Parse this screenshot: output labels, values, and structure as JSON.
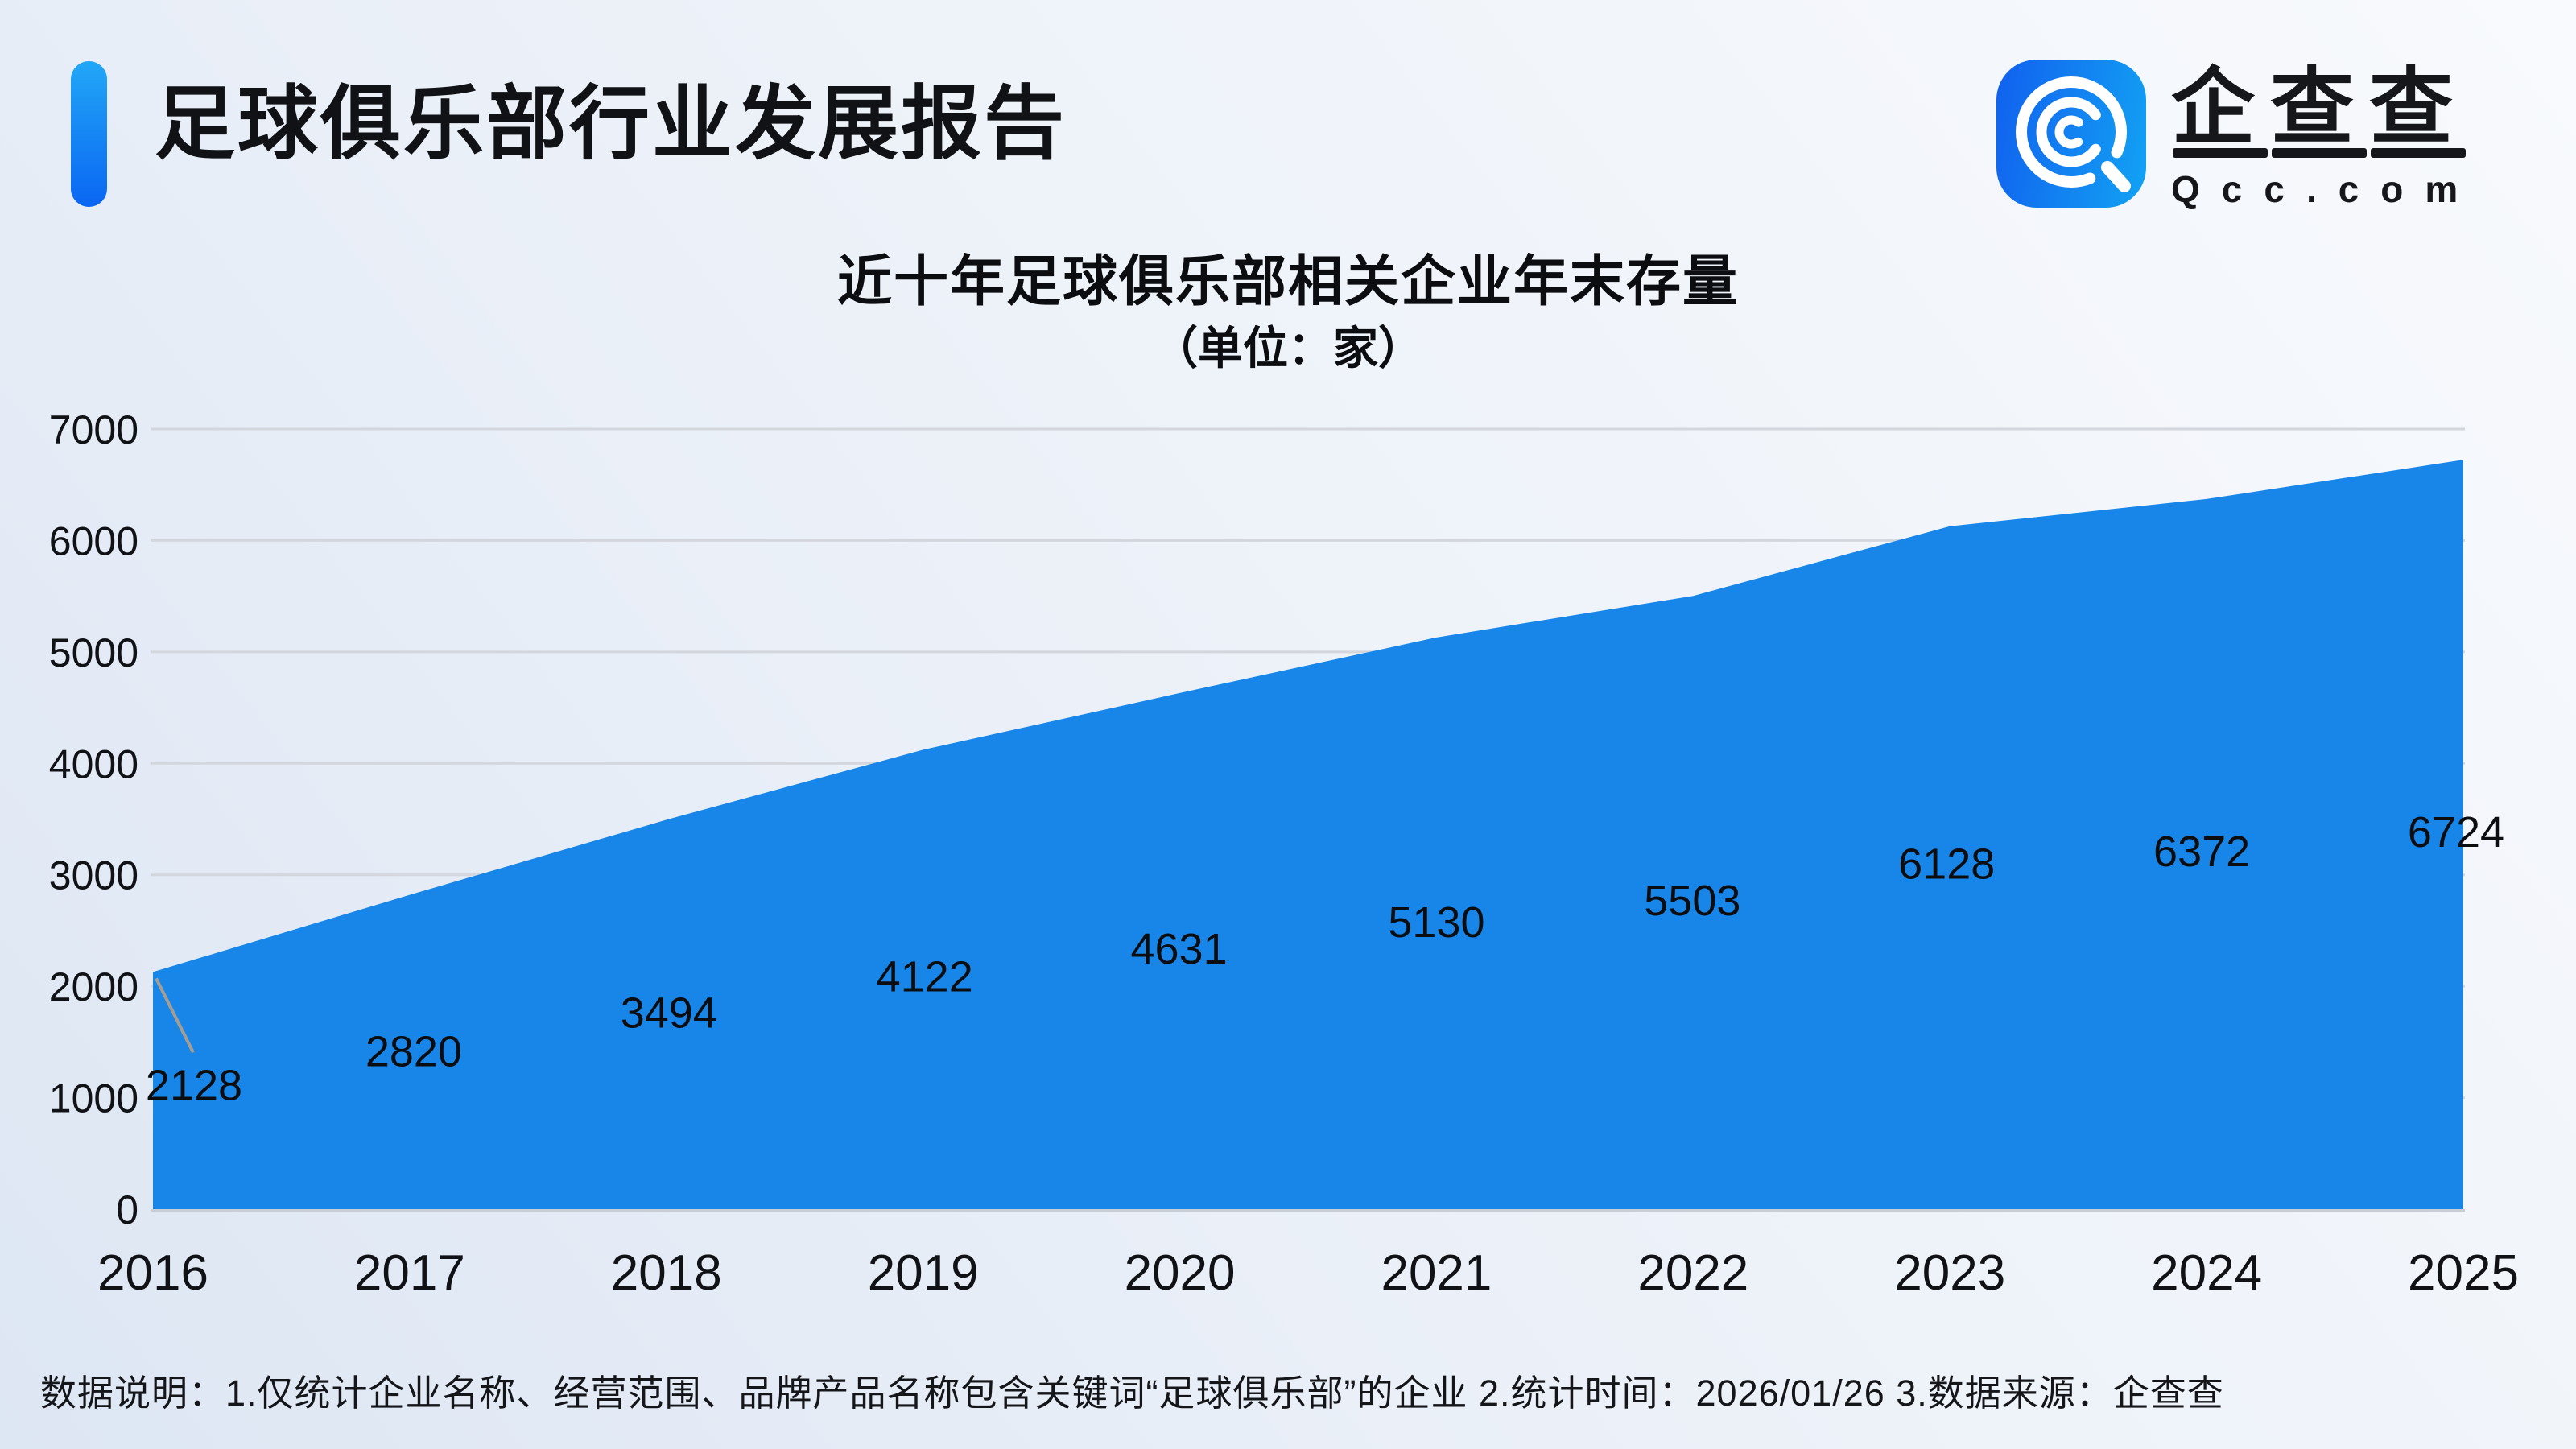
{
  "header": {
    "title": "足球俱乐部行业发展报告"
  },
  "logo": {
    "icon": "magnifier-q-icon",
    "wordmark": "企查查",
    "domain": "Qcc.com",
    "icon_gradient": [
      "#1160ee",
      "#12a3f4"
    ]
  },
  "chart_data": {
    "type": "area",
    "title": "近十年足球俱乐部相关企业年末存量",
    "subtitle": "（单位：家）",
    "unit": "家",
    "categories": [
      "2016",
      "2017",
      "2018",
      "2019",
      "2020",
      "2021",
      "2022",
      "2023",
      "2024",
      "2025"
    ],
    "values": [
      2128,
      2820,
      3494,
      4122,
      4631,
      5130,
      5503,
      6128,
      6372,
      6724
    ],
    "ylim": [
      0,
      7000
    ],
    "yticks": [
      0,
      1000,
      2000,
      3000,
      4000,
      5000,
      6000,
      7000
    ],
    "grid": true,
    "legend": false,
    "annotation": {
      "first_point_leader_line": true
    },
    "colors": {
      "area": "#1886e8",
      "gridline": "#d3d6dc",
      "baseline": "#c9cdd6",
      "tick_text": "#101215",
      "data_label_text": "#0b0d10",
      "leader_line": "#a39d94"
    }
  },
  "footnote": {
    "text": "数据说明：1.仅统计企业名称、经营范围、品牌产品名称包含关键词“足球俱乐部”的企业  2.统计时间：2026/01/26  3.数据来源：企查查"
  }
}
